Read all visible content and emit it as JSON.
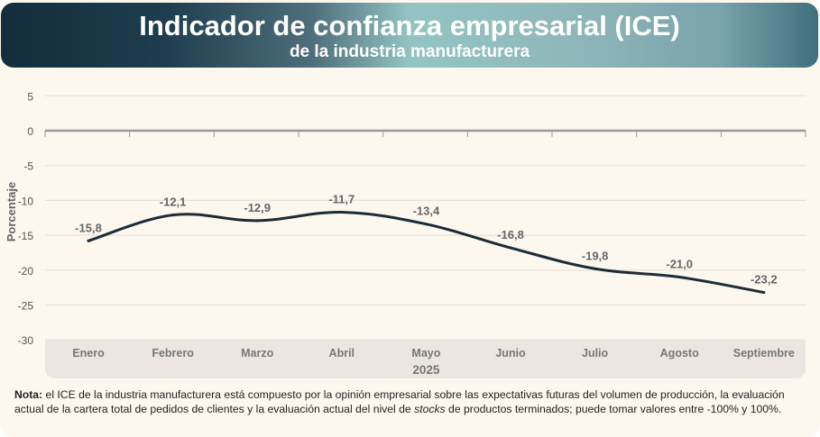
{
  "header": {
    "title": "Indicador de confianza empresarial (ICE)",
    "subtitle": "de la industria manufacturera"
  },
  "chart_data": {
    "type": "line",
    "title": "Indicador de confianza empresarial (ICE)",
    "subtitle": "de la industria manufacturera",
    "ylabel": "Porcentaje",
    "xlabel": "2025",
    "categories": [
      "Enero",
      "Febrero",
      "Marzo",
      "Abril",
      "Mayo",
      "Junio",
      "Julio",
      "Agosto",
      "Septiembre"
    ],
    "values": [
      -15.8,
      -12.1,
      -12.9,
      -11.7,
      -13.4,
      -16.8,
      -19.8,
      -21.0,
      -23.2
    ],
    "data_labels": [
      "-15,8",
      "-12,1",
      "-12,9",
      "-11,7",
      "-13,4",
      "-16,8",
      "-19,8",
      "-21,0",
      "-23,2"
    ],
    "yticks": [
      "5",
      "0",
      "-5",
      "-10",
      "-15",
      "-20",
      "-25",
      "-30"
    ],
    "ylim": [
      -30,
      5
    ],
    "grid": true,
    "line_color": "#1b2d38"
  },
  "note": {
    "bold": "Nota:",
    "text1": " el ICE de la industria manufacturera está compuesto por la opinión empresarial sobre las expectativas futuras del volumen de producción, la evaluación actual de la cartera total de pedidos de clientes y la evaluación actual del nivel de ",
    "italic": "stocks",
    "text2": " de productos terminados; puede tomar valores entre -100% y 100%."
  }
}
